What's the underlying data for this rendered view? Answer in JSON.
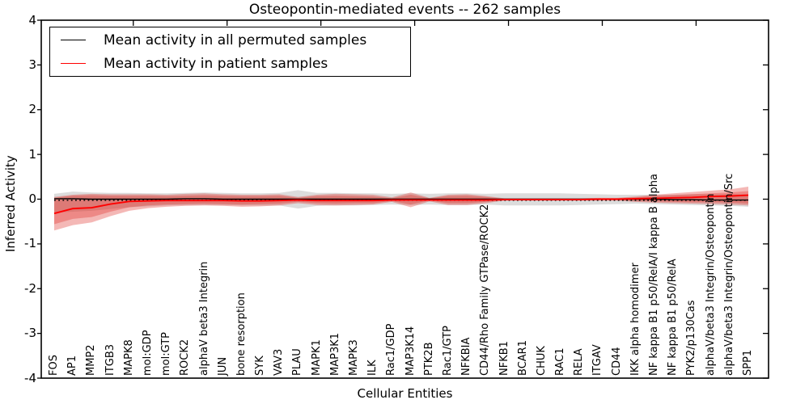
{
  "title": "Osteopontin-mediated events -- 262 samples",
  "legend": {
    "items": [
      {
        "label": "Mean activity in all permuted samples",
        "color": "#000000"
      },
      {
        "label": "Mean activity in patient samples",
        "color": "#ff0000"
      }
    ]
  },
  "axes": {
    "ylabel": "Inferred Activity",
    "xlabel": "Cellular Entities",
    "yticks": [
      4,
      3,
      2,
      1,
      0,
      -1,
      -2,
      -3,
      -4
    ]
  },
  "chart_data": {
    "type": "line",
    "title": "Osteopontin-mediated events -- 262 samples",
    "xlabel": "Cellular Entities",
    "ylabel": "Inferred Activity",
    "ylim": [
      -4,
      4
    ],
    "grid": false,
    "legend_position": "upper left",
    "categories": [
      "FOS",
      "AP1",
      "MMP2",
      "ITGB3",
      "MAPK8",
      "mol:GDP",
      "mol:GTP",
      "ROCK2",
      "alphaV beta3 Integrin",
      "JUN",
      "bone resorption",
      "SYK",
      "VAV3",
      "PLAU",
      "MAPK1",
      "MAP3K1",
      "MAPK3",
      "ILK",
      "Rac1/GDP",
      "MAP3K14",
      "PTK2B",
      "Rac1/GTP",
      "NFKBIA",
      "CD44/Rho Family GTPase/ROCK2",
      "NFKB1",
      "BCAR1",
      "CHUK",
      "RAC1",
      "RELA",
      "ITGAV",
      "CD44",
      "IKK alpha homodimer",
      "NF kappa B1 p50/RelA/I kappa B alpha",
      "NF kappa B1 p50/RelA",
      "PYK2/p130Cas",
      "alphaV/beta3 Integrin/Osteopontin",
      "alphaV/beta3 Integrin/Osteopontin/Src",
      "SPP1"
    ],
    "series": [
      {
        "name": "Mean activity in all permuted samples",
        "color": "#000000",
        "style": "solid",
        "values": [
          0.01,
          0.01,
          0,
          0,
          0,
          0,
          0,
          0.01,
          0.01,
          0,
          0,
          0,
          0,
          0,
          0,
          0,
          0,
          0,
          0,
          0,
          0,
          0,
          0,
          0,
          0,
          0,
          0,
          0,
          0,
          0,
          0,
          0,
          0,
          -0.01,
          -0.01,
          -0.02,
          -0.02,
          -0.02
        ]
      },
      {
        "name": "Mean activity in patient samples",
        "color": "#ff0000",
        "style": "solid",
        "values": [
          -0.32,
          -0.21,
          -0.19,
          -0.11,
          -0.05,
          -0.04,
          -0.03,
          -0.03,
          -0.03,
          -0.03,
          -0.04,
          -0.04,
          -0.03,
          -0.02,
          -0.03,
          -0.03,
          -0.03,
          -0.03,
          -0.02,
          -0.02,
          -0.02,
          -0.02,
          -0.02,
          -0.02,
          -0.01,
          -0.01,
          -0.01,
          -0.01,
          -0.01,
          0,
          0,
          0.01,
          0.02,
          0.03,
          0.04,
          0.06,
          0.07,
          0.09
        ]
      }
    ],
    "reference_line": {
      "name": "zero-line",
      "style": "dotted",
      "color": "#000000",
      "value": 0
    },
    "bands": [
      {
        "name": "permuted-samples-range",
        "color": "#787878",
        "opacity": 0.26,
        "lo": [
          -0.3,
          -0.28,
          -0.26,
          -0.22,
          -0.18,
          -0.16,
          -0.14,
          -0.13,
          -0.13,
          -0.13,
          -0.14,
          -0.14,
          -0.14,
          -0.21,
          -0.15,
          -0.14,
          -0.14,
          -0.13,
          -0.12,
          -0.13,
          -0.12,
          -0.13,
          -0.13,
          -0.12,
          -0.14,
          -0.14,
          -0.14,
          -0.14,
          -0.13,
          -0.12,
          -0.11,
          -0.1,
          -0.11,
          -0.12,
          -0.13,
          -0.14,
          -0.15,
          -0.17
        ],
        "hi": [
          0.12,
          0.17,
          0.15,
          0.14,
          0.14,
          0.13,
          0.13,
          0.14,
          0.15,
          0.14,
          0.13,
          0.13,
          0.14,
          0.2,
          0.14,
          0.14,
          0.13,
          0.13,
          0.12,
          0.13,
          0.12,
          0.13,
          0.13,
          0.12,
          0.13,
          0.13,
          0.13,
          0.13,
          0.12,
          0.11,
          0.1,
          0.1,
          0.1,
          0.1,
          0.11,
          0.11,
          0.11,
          0.11
        ]
      },
      {
        "name": "patient-samples-range-outer",
        "color": "#e0302a",
        "opacity": 0.34,
        "lo": [
          -0.7,
          -0.58,
          -0.52,
          -0.38,
          -0.26,
          -0.2,
          -0.17,
          -0.15,
          -0.14,
          -0.15,
          -0.17,
          -0.16,
          -0.14,
          -0.09,
          -0.13,
          -0.14,
          -0.13,
          -0.12,
          -0.06,
          -0.18,
          -0.05,
          -0.13,
          -0.13,
          -0.09,
          -0.03,
          -0.03,
          -0.03,
          -0.03,
          -0.03,
          -0.03,
          -0.03,
          -0.06,
          -0.08,
          -0.09,
          -0.1,
          -0.11,
          -0.12,
          -0.14
        ],
        "hi": [
          0.05,
          0.1,
          0.12,
          0.11,
          0.11,
          0.11,
          0.1,
          0.12,
          0.13,
          0.11,
          0.1,
          0.1,
          0.11,
          0.05,
          0.1,
          0.12,
          0.11,
          0.1,
          0.04,
          0.15,
          0.03,
          0.1,
          0.11,
          0.07,
          0.02,
          0.02,
          0.02,
          0.02,
          0.02,
          0.03,
          0.03,
          0.06,
          0.1,
          0.13,
          0.16,
          0.19,
          0.22,
          0.28
        ]
      },
      {
        "name": "patient-samples-range-inner",
        "color": "#e0302a",
        "opacity": 0.34,
        "lo": [
          -0.56,
          -0.44,
          -0.4,
          -0.28,
          -0.18,
          -0.14,
          -0.12,
          -0.11,
          -0.1,
          -0.11,
          -0.12,
          -0.11,
          -0.1,
          -0.06,
          -0.09,
          -0.1,
          -0.09,
          -0.09,
          -0.04,
          -0.12,
          -0.03,
          -0.09,
          -0.09,
          -0.06,
          -0.02,
          -0.02,
          -0.02,
          -0.02,
          -0.02,
          -0.02,
          -0.02,
          -0.04,
          -0.05,
          -0.06,
          -0.07,
          -0.07,
          -0.08,
          -0.1
        ],
        "hi": [
          0.03,
          0.08,
          0.09,
          0.08,
          0.08,
          0.08,
          0.07,
          0.08,
          0.09,
          0.08,
          0.07,
          0.07,
          0.08,
          0.03,
          0.07,
          0.08,
          0.07,
          0.06,
          0.02,
          0.1,
          0.02,
          0.07,
          0.08,
          0.05,
          0.01,
          0.01,
          0.01,
          0.01,
          0.01,
          0.02,
          0.02,
          0.04,
          0.07,
          0.09,
          0.11,
          0.13,
          0.15,
          0.18
        ]
      }
    ]
  }
}
